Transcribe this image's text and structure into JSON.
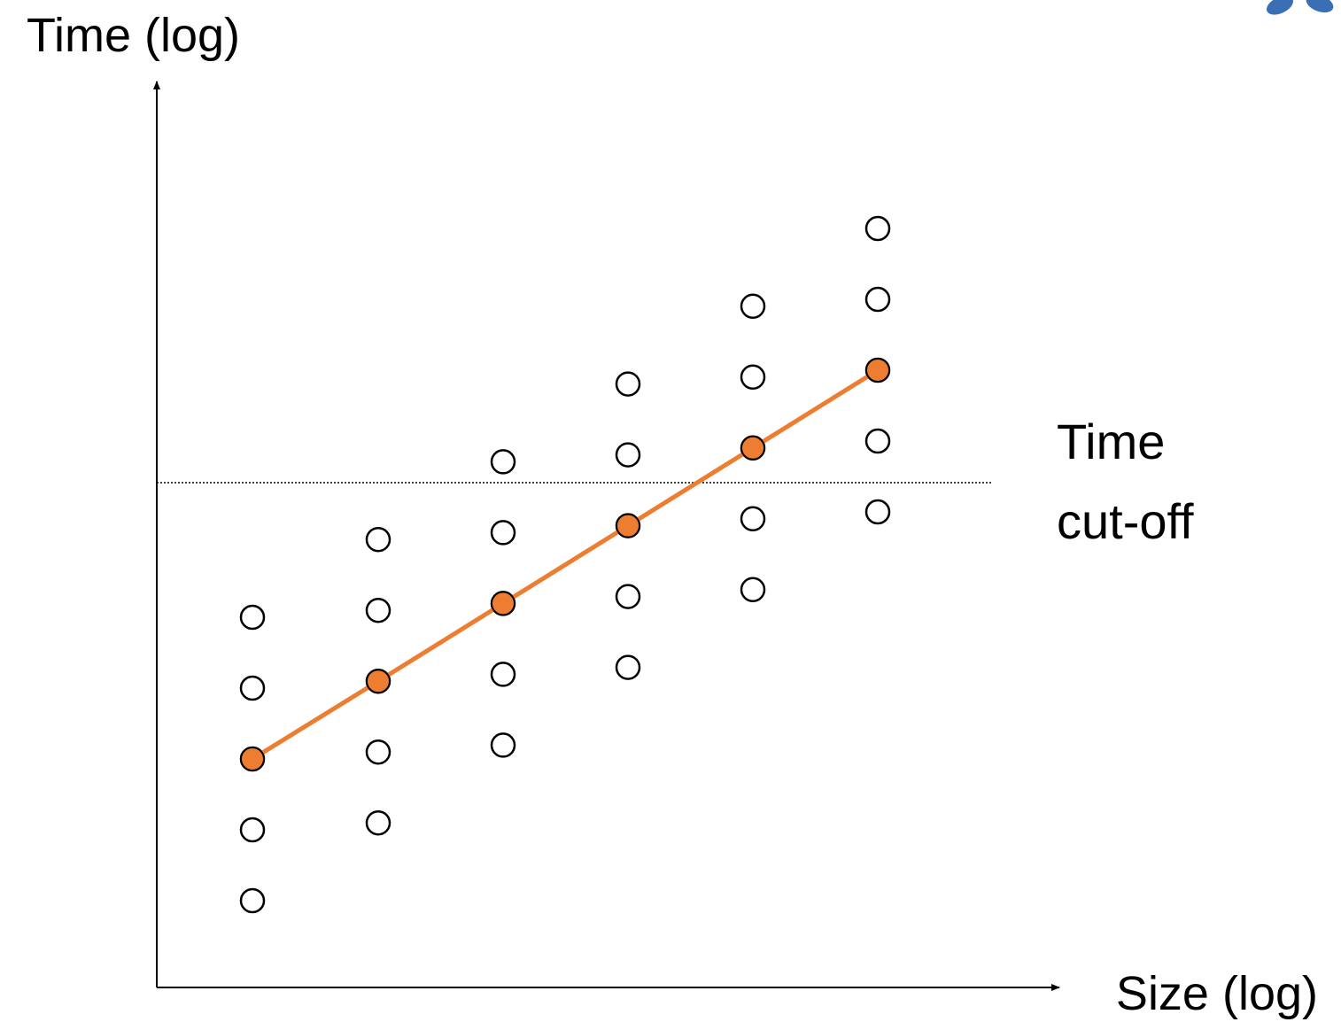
{
  "axes": {
    "y_label": "Time (log)",
    "x_label": "Size (log)"
  },
  "annotation": {
    "lines": [
      "Time",
      "cut-off"
    ]
  }
}
